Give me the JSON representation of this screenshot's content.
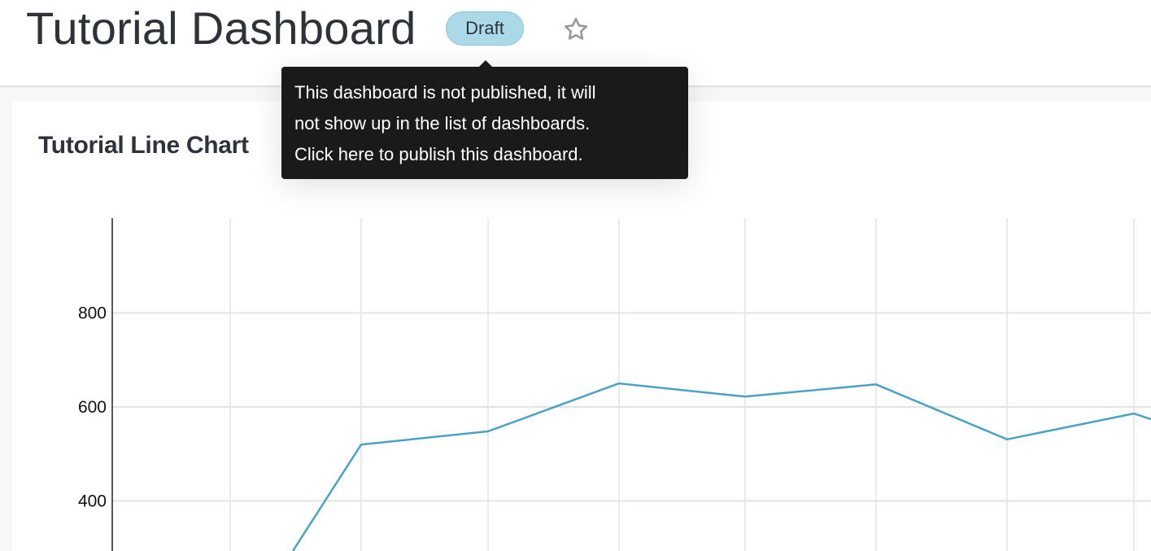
{
  "header": {
    "title": "Tutorial Dashboard",
    "status_badge": "Draft",
    "favorite_icon": "star-outline-icon"
  },
  "tooltip": {
    "lines": [
      "This dashboard is not published, it will",
      "not show up in the list of dashboards.",
      "Click here to publish this dashboard."
    ]
  },
  "colors": {
    "badge": "#acd9e8",
    "line": "#4aa3c4",
    "tooltip_bg": "#1a1a1a"
  },
  "chart_data": {
    "type": "line",
    "title": "Tutorial Line Chart",
    "yticks": [
      "400",
      "600",
      "800"
    ],
    "grid": true,
    "series": [
      {
        "values": [
          86,
          520,
          548,
          650,
          622,
          648,
          531,
          586,
          493
        ]
      }
    ]
  }
}
